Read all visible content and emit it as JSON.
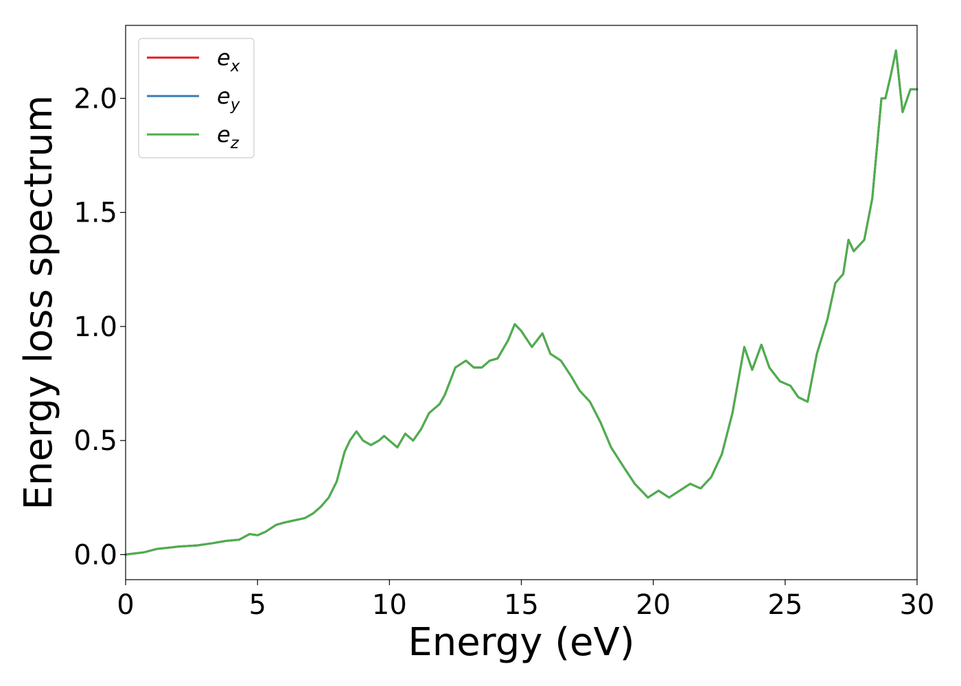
{
  "chart_data": {
    "type": "line",
    "title": "",
    "xlabel": "Energy (eV)",
    "ylabel": "Energy loss spectrum",
    "xlim": [
      0,
      30
    ],
    "ylim": [
      -0.11,
      2.32
    ],
    "xticks": [
      0,
      5,
      10,
      15,
      20,
      25,
      30
    ],
    "xtick_labels": [
      "0",
      "5",
      "10",
      "15",
      "20",
      "25",
      "30"
    ],
    "yticks": [
      0.0,
      0.5,
      1.0,
      1.5,
      2.0
    ],
    "ytick_labels": [
      "0.0",
      "0.5",
      "1.0",
      "1.5",
      "2.0"
    ],
    "grid": false,
    "legend_placement": "top-left",
    "legend": [
      {
        "base": "e",
        "sub": "x",
        "color": "#e41a1c"
      },
      {
        "base": "e",
        "sub": "y",
        "color": "#377eb8"
      },
      {
        "base": "e",
        "sub": "z",
        "color": "#4daf4a"
      }
    ],
    "x": [
      0,
      0.7,
      1.2,
      2.0,
      2.7,
      3.3,
      3.8,
      4.3,
      4.7,
      5.0,
      5.3,
      5.7,
      6.0,
      6.4,
      6.8,
      7.1,
      7.4,
      7.7,
      8.0,
      8.3,
      8.5,
      8.75,
      9.0,
      9.3,
      9.6,
      9.8,
      10.0,
      10.3,
      10.6,
      10.9,
      11.2,
      11.5,
      11.9,
      12.1,
      12.5,
      12.9,
      13.2,
      13.5,
      13.8,
      14.1,
      14.5,
      14.75,
      15.0,
      15.4,
      15.8,
      16.1,
      16.5,
      16.9,
      17.2,
      17.6,
      18.0,
      18.4,
      18.9,
      19.3,
      19.8,
      20.2,
      20.6,
      21.0,
      21.4,
      21.8,
      22.2,
      22.6,
      23.0,
      23.45,
      23.75,
      24.1,
      24.4,
      24.8,
      25.2,
      25.5,
      25.85,
      26.2,
      26.6,
      26.9,
      27.2,
      27.4,
      27.6,
      28.0,
      28.3,
      28.65,
      28.8,
      29.0,
      29.2,
      29.45,
      29.75,
      30.0
    ],
    "series": [
      {
        "name": "e_x",
        "color": "#e41a1c",
        "values": [
          0.0,
          0.01,
          0.025,
          0.035,
          0.04,
          0.05,
          0.06,
          0.065,
          0.09,
          0.085,
          0.1,
          0.13,
          0.14,
          0.15,
          0.16,
          0.18,
          0.21,
          0.25,
          0.32,
          0.45,
          0.5,
          0.54,
          0.5,
          0.48,
          0.5,
          0.52,
          0.5,
          0.47,
          0.53,
          0.5,
          0.55,
          0.62,
          0.66,
          0.7,
          0.82,
          0.85,
          0.82,
          0.82,
          0.85,
          0.86,
          0.94,
          1.01,
          0.98,
          0.91,
          0.97,
          0.88,
          0.85,
          0.78,
          0.72,
          0.67,
          0.58,
          0.47,
          0.38,
          0.31,
          0.25,
          0.28,
          0.25,
          0.28,
          0.31,
          0.29,
          0.34,
          0.44,
          0.62,
          0.91,
          0.81,
          0.92,
          0.82,
          0.76,
          0.74,
          0.69,
          0.67,
          0.88,
          1.03,
          1.19,
          1.23,
          1.38,
          1.33,
          1.38,
          1.56,
          2.0,
          2.0,
          2.1,
          2.21,
          1.94,
          2.04,
          2.04
        ]
      },
      {
        "name": "e_y",
        "color": "#377eb8",
        "values": [
          0.0,
          0.01,
          0.025,
          0.035,
          0.04,
          0.05,
          0.06,
          0.065,
          0.09,
          0.085,
          0.1,
          0.13,
          0.14,
          0.15,
          0.16,
          0.18,
          0.21,
          0.25,
          0.32,
          0.45,
          0.5,
          0.54,
          0.5,
          0.48,
          0.5,
          0.52,
          0.5,
          0.47,
          0.53,
          0.5,
          0.55,
          0.62,
          0.66,
          0.7,
          0.82,
          0.85,
          0.82,
          0.82,
          0.85,
          0.86,
          0.94,
          1.01,
          0.98,
          0.91,
          0.97,
          0.88,
          0.85,
          0.78,
          0.72,
          0.67,
          0.58,
          0.47,
          0.38,
          0.31,
          0.25,
          0.28,
          0.25,
          0.28,
          0.31,
          0.29,
          0.34,
          0.44,
          0.62,
          0.91,
          0.81,
          0.92,
          0.82,
          0.76,
          0.74,
          0.69,
          0.67,
          0.88,
          1.03,
          1.19,
          1.23,
          1.38,
          1.33,
          1.38,
          1.56,
          2.0,
          2.0,
          2.1,
          2.21,
          1.94,
          2.04,
          2.04
        ]
      },
      {
        "name": "e_z",
        "color": "#4daf4a",
        "values": [
          0.0,
          0.01,
          0.025,
          0.035,
          0.04,
          0.05,
          0.06,
          0.065,
          0.09,
          0.085,
          0.1,
          0.13,
          0.14,
          0.15,
          0.16,
          0.18,
          0.21,
          0.25,
          0.32,
          0.45,
          0.5,
          0.54,
          0.5,
          0.48,
          0.5,
          0.52,
          0.5,
          0.47,
          0.53,
          0.5,
          0.55,
          0.62,
          0.66,
          0.7,
          0.82,
          0.85,
          0.82,
          0.82,
          0.85,
          0.86,
          0.94,
          1.01,
          0.98,
          0.91,
          0.97,
          0.88,
          0.85,
          0.78,
          0.72,
          0.67,
          0.58,
          0.47,
          0.38,
          0.31,
          0.25,
          0.28,
          0.25,
          0.28,
          0.31,
          0.29,
          0.34,
          0.44,
          0.62,
          0.91,
          0.81,
          0.92,
          0.82,
          0.76,
          0.74,
          0.69,
          0.67,
          0.88,
          1.03,
          1.19,
          1.23,
          1.38,
          1.33,
          1.38,
          1.56,
          2.0,
          2.0,
          2.1,
          2.21,
          1.94,
          2.04,
          2.04
        ]
      }
    ]
  }
}
